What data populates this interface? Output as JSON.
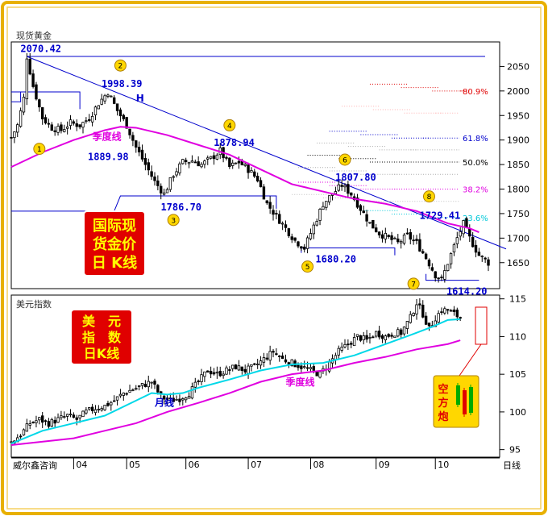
{
  "titles": {
    "top_panel": "现货黄金",
    "bottom_panel": "美元指数",
    "source": "威尔鑫咨询",
    "period": "日线"
  },
  "colors": {
    "frame_gold": "#e8b000",
    "axis_blue": "#0000cc",
    "magenta_line": "#e000e0",
    "cyan_line": "#00d8e8",
    "candle": "#000000",
    "box_red": "#e00000",
    "box_text": "#ffff00",
    "fib_red": "#e00000",
    "fib_blue": "#0000cc",
    "fib_cyan": "#00c8d8",
    "badge_yellow": "#ffd700"
  },
  "gold_box": [
    "国际现",
    "货金价",
    "日 K线"
  ],
  "usd_box": [
    "美　元",
    "指　数",
    "日K线"
  ],
  "legend_box": [
    "空",
    "方",
    "炮"
  ],
  "chart_data": [
    {
      "type": "candlestick",
      "title": "现货黄金",
      "y_ticks": [
        2050,
        2000,
        1950,
        1900,
        1850,
        1800,
        1750,
        1700,
        1650
      ],
      "ylim": [
        1597,
        2100
      ],
      "x_ticks": [
        "04",
        "05",
        "06",
        "07",
        "08",
        "09",
        "10"
      ],
      "close_path": [
        [
          0,
          1905
        ],
        [
          2,
          1930
        ],
        [
          4,
          1985
        ],
        [
          5,
          2070
        ],
        [
          7,
          2010
        ],
        [
          10,
          1945
        ],
        [
          13,
          1925
        ],
        [
          16,
          1920
        ],
        [
          19,
          1935
        ],
        [
          22,
          1930
        ],
        [
          25,
          1945
        ],
        [
          28,
          1975
        ],
        [
          31,
          1998
        ],
        [
          34,
          1960
        ],
        [
          37,
          1930
        ],
        [
          40,
          1885
        ],
        [
          43,
          1850
        ],
        [
          46,
          1815
        ],
        [
          49,
          1790
        ],
        [
          52,
          1830
        ],
        [
          55,
          1855
        ],
        [
          58,
          1858
        ],
        [
          61,
          1850
        ],
        [
          64,
          1862
        ],
        [
          67,
          1878
        ],
        [
          70,
          1845
        ],
        [
          73,
          1855
        ],
        [
          76,
          1840
        ],
        [
          79,
          1820
        ],
        [
          82,
          1770
        ],
        [
          85,
          1745
        ],
        [
          88,
          1720
        ],
        [
          91,
          1695
        ],
        [
          94,
          1680
        ],
        [
          97,
          1725
        ],
        [
          100,
          1770
        ],
        [
          103,
          1790
        ],
        [
          106,
          1808
        ],
        [
          109,
          1790
        ],
        [
          112,
          1760
        ],
        [
          115,
          1730
        ],
        [
          118,
          1710
        ],
        [
          121,
          1700
        ],
        [
          124,
          1690
        ],
        [
          127,
          1705
        ],
        [
          130,
          1690
        ],
        [
          133,
          1660
        ],
        [
          136,
          1625
        ],
        [
          138,
          1614
        ],
        [
          140,
          1650
        ],
        [
          143,
          1700
        ],
        [
          145,
          1729
        ],
        [
          147,
          1700
        ],
        [
          150,
          1665
        ],
        [
          153,
          1650
        ]
      ],
      "quarterly_ma_path": [
        [
          0,
          1845
        ],
        [
          10,
          1875
        ],
        [
          20,
          1900
        ],
        [
          30,
          1920
        ],
        [
          35,
          1927
        ],
        [
          40,
          1925
        ],
        [
          50,
          1910
        ],
        [
          60,
          1890
        ],
        [
          70,
          1870
        ],
        [
          80,
          1840
        ],
        [
          90,
          1810
        ],
        [
          100,
          1795
        ],
        [
          110,
          1780
        ],
        [
          120,
          1770
        ],
        [
          130,
          1755
        ],
        [
          140,
          1730
        ],
        [
          147,
          1720
        ],
        [
          150,
          1712
        ]
      ],
      "price_labels": [
        {
          "text": "2070.42",
          "x": 5,
          "y": 2070
        },
        {
          "text": "1998.39",
          "x": 31,
          "y": 1998
        },
        {
          "text": "1889.98",
          "x": 23,
          "y": 1889
        },
        {
          "text": "1878.94",
          "x": 67,
          "y": 1878
        },
        {
          "text": "1786.70",
          "x": 50,
          "y": 1786
        },
        {
          "text": "1807.80",
          "x": 106,
          "y": 1807
        },
        {
          "text": "1680.20",
          "x": 96,
          "y": 1680
        },
        {
          "text": "1729.41",
          "x": 133,
          "y": 1729
        },
        {
          "text": "1614.20",
          "x": 138,
          "y": 1614
        }
      ],
      "fib_labels": [
        {
          "text": "80.9%",
          "y": 2000
        },
        {
          "text": "61.8%",
          "y": 1904
        },
        {
          "text": "50.0%",
          "y": 1855
        },
        {
          "text": "38.2%",
          "y": 1800
        },
        {
          "text": "23.6%",
          "y": 1742
        }
      ],
      "badges": [
        {
          "text": "1",
          "x": 9,
          "y": 1882
        },
        {
          "text": "2",
          "x": 35,
          "y": 2052
        },
        {
          "text": "3",
          "x": 52,
          "y": 1737
        },
        {
          "text": "4",
          "x": 70,
          "y": 1930
        },
        {
          "text": "5",
          "x": 95,
          "y": 1642
        },
        {
          "text": "6",
          "x": 107,
          "y": 1860
        },
        {
          "text": "7",
          "x": 129,
          "y": 1607
        },
        {
          "text": "8",
          "x": 134,
          "y": 1785
        }
      ],
      "annotations": [
        {
          "text": "季度线",
          "x": 26,
          "y": 1900
        },
        {
          "text": "H",
          "x": 40,
          "y": 1978
        }
      ]
    },
    {
      "type": "candlestick",
      "title": "美元指数",
      "y_ticks": [
        115,
        110,
        105,
        100,
        95
      ],
      "ylim": [
        94,
        115.5
      ],
      "close_path": [
        [
          0,
          96
        ],
        [
          3,
          97
        ],
        [
          6,
          98.5
        ],
        [
          9,
          99
        ],
        [
          12,
          98.5
        ],
        [
          15,
          99
        ],
        [
          18,
          99.5
        ],
        [
          21,
          99
        ],
        [
          24,
          100
        ],
        [
          27,
          100.5
        ],
        [
          30,
          100.8
        ],
        [
          33,
          101.5
        ],
        [
          36,
          102.5
        ],
        [
          39,
          103
        ],
        [
          42,
          103.5
        ],
        [
          45,
          104
        ],
        [
          48,
          102
        ],
        [
          51,
          101.5
        ],
        [
          54,
          101.8
        ],
        [
          57,
          102.5
        ],
        [
          60,
          104
        ],
        [
          63,
          105.5
        ],
        [
          66,
          105
        ],
        [
          69,
          105.5
        ],
        [
          72,
          106
        ],
        [
          75,
          105.5
        ],
        [
          78,
          106
        ],
        [
          81,
          107
        ],
        [
          84,
          108
        ],
        [
          87,
          107
        ],
        [
          90,
          106.5
        ],
        [
          93,
          106
        ],
        [
          96,
          105.5
        ],
        [
          99,
          105
        ],
        [
          102,
          106.5
        ],
        [
          105,
          108
        ],
        [
          108,
          109
        ],
        [
          111,
          110
        ],
        [
          114,
          109.5
        ],
        [
          117,
          110.5
        ],
        [
          120,
          110
        ],
        [
          123,
          110.5
        ],
        [
          125,
          110.5
        ],
        [
          128,
          112.5
        ],
        [
          130,
          114.5
        ],
        [
          132,
          113
        ],
        [
          134,
          111
        ],
        [
          136,
          112.5
        ],
        [
          138,
          113.5
        ],
        [
          140,
          113.5
        ],
        [
          142,
          113
        ],
        [
          144,
          112.5
        ]
      ],
      "monthly_ma_path": [
        [
          0,
          95.8
        ],
        [
          10,
          97.5
        ],
        [
          20,
          98.5
        ],
        [
          30,
          99.5
        ],
        [
          40,
          101.5
        ],
        [
          45,
          102.5
        ],
        [
          50,
          102.3
        ],
        [
          55,
          102.5
        ],
        [
          60,
          103.2
        ],
        [
          70,
          104.3
        ],
        [
          80,
          105.5
        ],
        [
          90,
          106.3
        ],
        [
          100,
          106.5
        ],
        [
          110,
          107.5
        ],
        [
          120,
          109
        ],
        [
          130,
          110.5
        ],
        [
          135,
          111.3
        ],
        [
          140,
          112.2
        ],
        [
          144,
          112.3
        ]
      ],
      "quarterly_ma_path": [
        [
          0,
          95.6
        ],
        [
          20,
          96.5
        ],
        [
          40,
          98.5
        ],
        [
          50,
          100
        ],
        [
          60,
          101.2
        ],
        [
          70,
          102.5
        ],
        [
          80,
          104
        ],
        [
          90,
          105
        ],
        [
          100,
          105.5
        ],
        [
          110,
          106.5
        ],
        [
          120,
          107.3
        ],
        [
          130,
          108.3
        ],
        [
          140,
          109
        ],
        [
          144,
          109.5
        ]
      ],
      "annotations": [
        {
          "text": "月线",
          "x": 46,
          "y": 100.8
        },
        {
          "text": "季度线",
          "x": 88,
          "y": 103.5
        }
      ]
    }
  ]
}
